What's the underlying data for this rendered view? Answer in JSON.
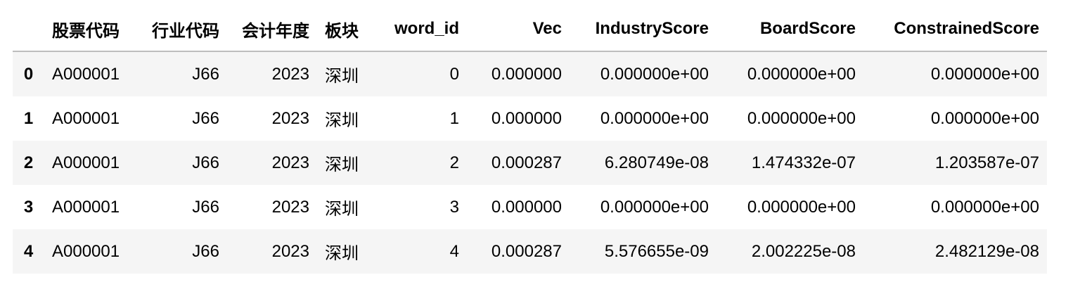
{
  "table": {
    "columns": [
      "",
      "股票代码",
      "行业代码",
      "会计年度",
      "板块",
      "word_id",
      "Vec",
      "IndustryScore",
      "BoardScore",
      "ConstrainedScore"
    ],
    "rows": [
      [
        "0",
        "A000001",
        "J66",
        "2023",
        "深圳",
        "0",
        "0.000000",
        "0.000000e+00",
        "0.000000e+00",
        "0.000000e+00"
      ],
      [
        "1",
        "A000001",
        "J66",
        "2023",
        "深圳",
        "1",
        "0.000000",
        "0.000000e+00",
        "0.000000e+00",
        "0.000000e+00"
      ],
      [
        "2",
        "A000001",
        "J66",
        "2023",
        "深圳",
        "2",
        "0.000287",
        "6.280749e-08",
        "1.474332e-07",
        "1.203587e-07"
      ],
      [
        "3",
        "A000001",
        "J66",
        "2023",
        "深圳",
        "3",
        "0.000000",
        "0.000000e+00",
        "0.000000e+00",
        "0.000000e+00"
      ],
      [
        "4",
        "A000001",
        "J66",
        "2023",
        "深圳",
        "4",
        "0.000287",
        "5.576655e-09",
        "2.002225e-08",
        "2.482129e-08"
      ]
    ]
  }
}
